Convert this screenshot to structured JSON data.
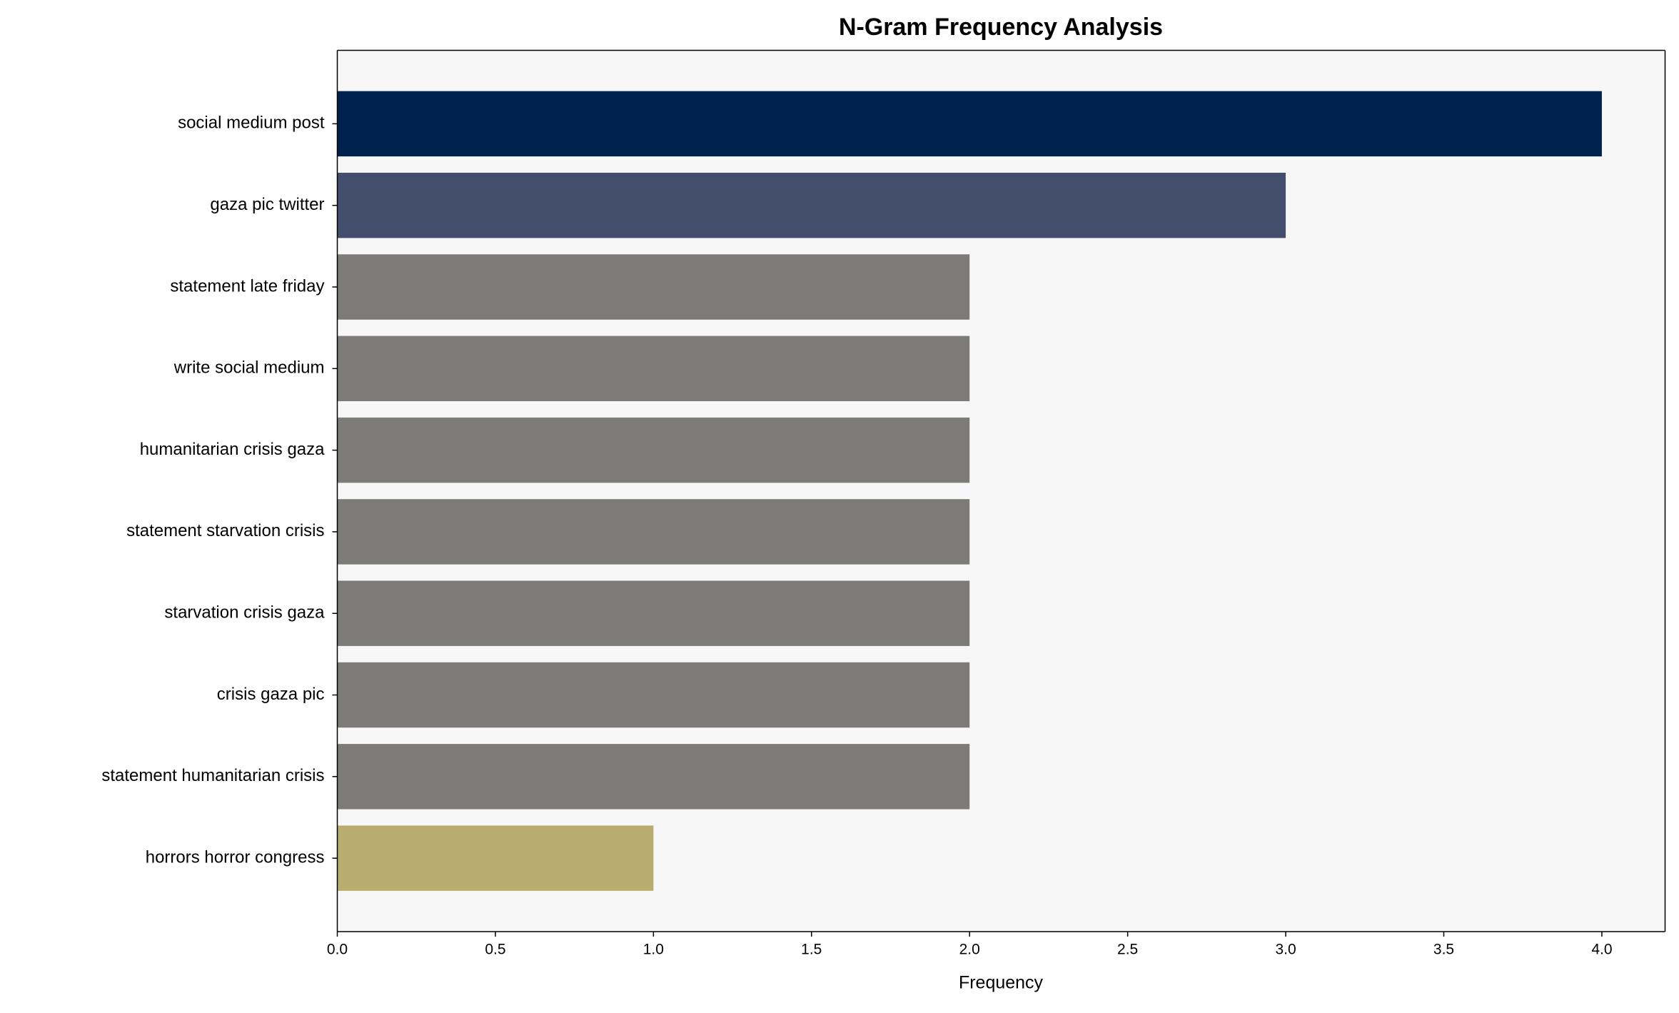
{
  "chart_data": {
    "type": "barh",
    "title": "N-Gram Frequency Analysis",
    "x_label": "Frequency",
    "categories": [
      "social medium post",
      "gaza pic twitter",
      "statement late friday",
      "write social medium",
      "humanitarian crisis gaza",
      "statement starvation crisis",
      "starvation crisis gaza",
      "crisis gaza pic",
      "statement humanitarian crisis",
      "horrors horror congress"
    ],
    "values": [
      4,
      3,
      2,
      2,
      2,
      2,
      2,
      2,
      2,
      1
    ],
    "colors": [
      "#00224e",
      "#434e6c",
      "#7c7b78",
      "#7c7b78",
      "#7c7b78",
      "#7c7b78",
      "#7c7b78",
      "#7c7b78",
      "#7c7b78",
      "#b9ac6f"
    ],
    "xlim": [
      0,
      4.2
    ],
    "xticks": [
      {
        "value": 0,
        "label": "0.0"
      },
      0.5,
      {
        "value": 1,
        "label": "1.0"
      },
      1.5,
      {
        "value": 2,
        "label": "2.0"
      },
      2.5,
      {
        "value": 3,
        "label": "3.0"
      },
      3.5,
      {
        "value": 4,
        "label": "4.0"
      }
    ],
    "grid": false
  }
}
